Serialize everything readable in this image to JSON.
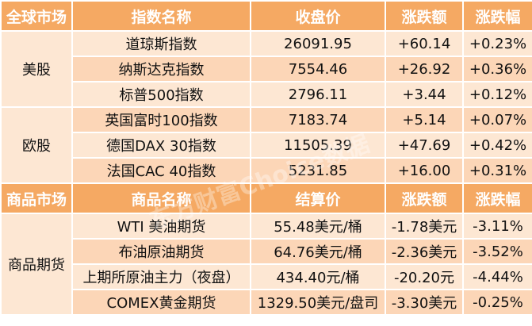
{
  "sections": [
    {
      "headers": [
        "全球市场",
        "指数名称",
        "收盘价",
        "涨跌额",
        "涨跌幅"
      ],
      "groups": [
        {
          "market": "美股",
          "rows": [
            [
              "道琼斯指数",
              "26091.95",
              "+60.14",
              "+0.23%"
            ],
            [
              "纳斯达克指数",
              "7554.46",
              "+26.92",
              "+0.36%"
            ],
            [
              "标普500指数",
              "2796.11",
              "+3.44",
              "+0.12%"
            ]
          ]
        },
        {
          "market": "欧股",
          "rows": [
            [
              "英国富时100指数",
              "7183.74",
              "+5.14",
              "+0.07%"
            ],
            [
              "德国DAX 30指数",
              "11505.39",
              "+47.69",
              "+0.42%"
            ],
            [
              "法国CAC 40指数",
              "5231.85",
              "+16.00",
              "+0.31%"
            ]
          ]
        }
      ]
    },
    {
      "headers": [
        "商品市场",
        "商品名称",
        "结算价",
        "涨跌额",
        "涨跌幅"
      ],
      "groups": [
        {
          "market": "商品期货",
          "rows": [
            [
              "WTI 美油期货",
              "55.48美元/桶",
              "-1.78美元",
              "-3.11%"
            ],
            [
              "布油原油期货",
              "64.76美元/桶",
              "-2.36美元",
              "-3.52%"
            ],
            [
              "上期所原油主力（夜盘）",
              "434.40元/桶",
              "-20.20元",
              "-4.44%"
            ],
            [
              "COMEX黄金期货",
              "1329.50美元/盘司",
              "-3.30美元",
              "-0.25%"
            ]
          ]
        }
      ]
    }
  ],
  "watermark": "东方财富Choice数据",
  "colors": {
    "header": "#f5a963",
    "row_light": "#fde7d3",
    "row_dark": "#fcd6b7"
  }
}
